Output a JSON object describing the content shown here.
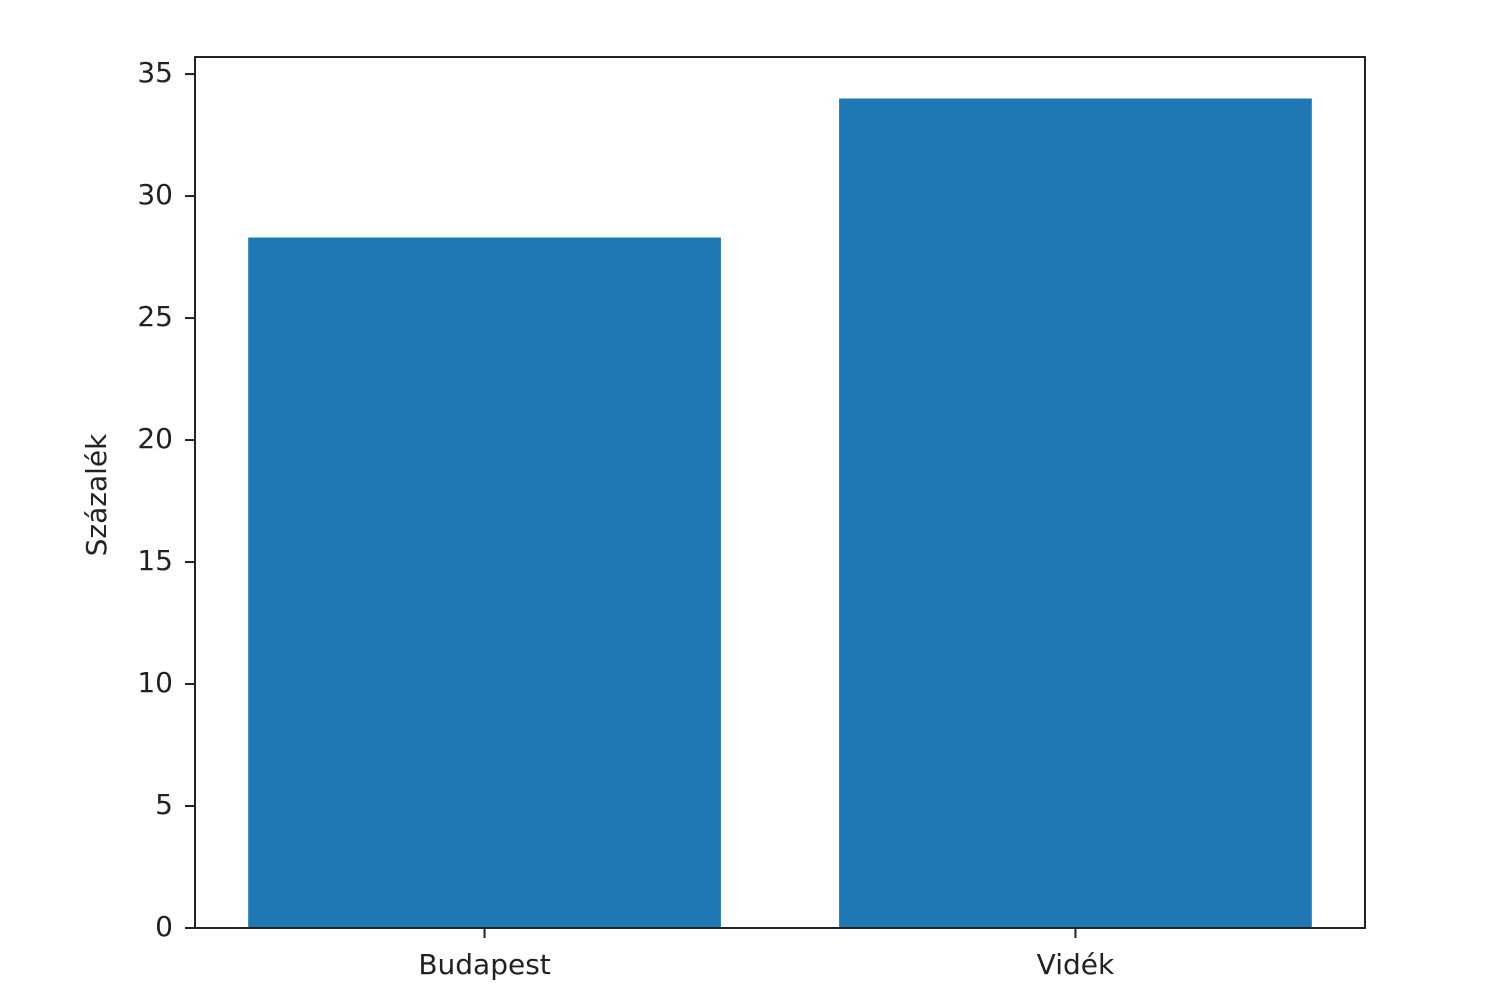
{
  "chart_data": {
    "type": "bar",
    "categories": [
      "Budapest",
      "Vidék"
    ],
    "values": [
      28.3,
      34.0
    ],
    "color": "#1f77b4",
    "ylabel": "Százalék",
    "ylim": [
      0,
      35.7
    ],
    "yticks": [
      0,
      5,
      10,
      15,
      20,
      25,
      30,
      35
    ]
  }
}
